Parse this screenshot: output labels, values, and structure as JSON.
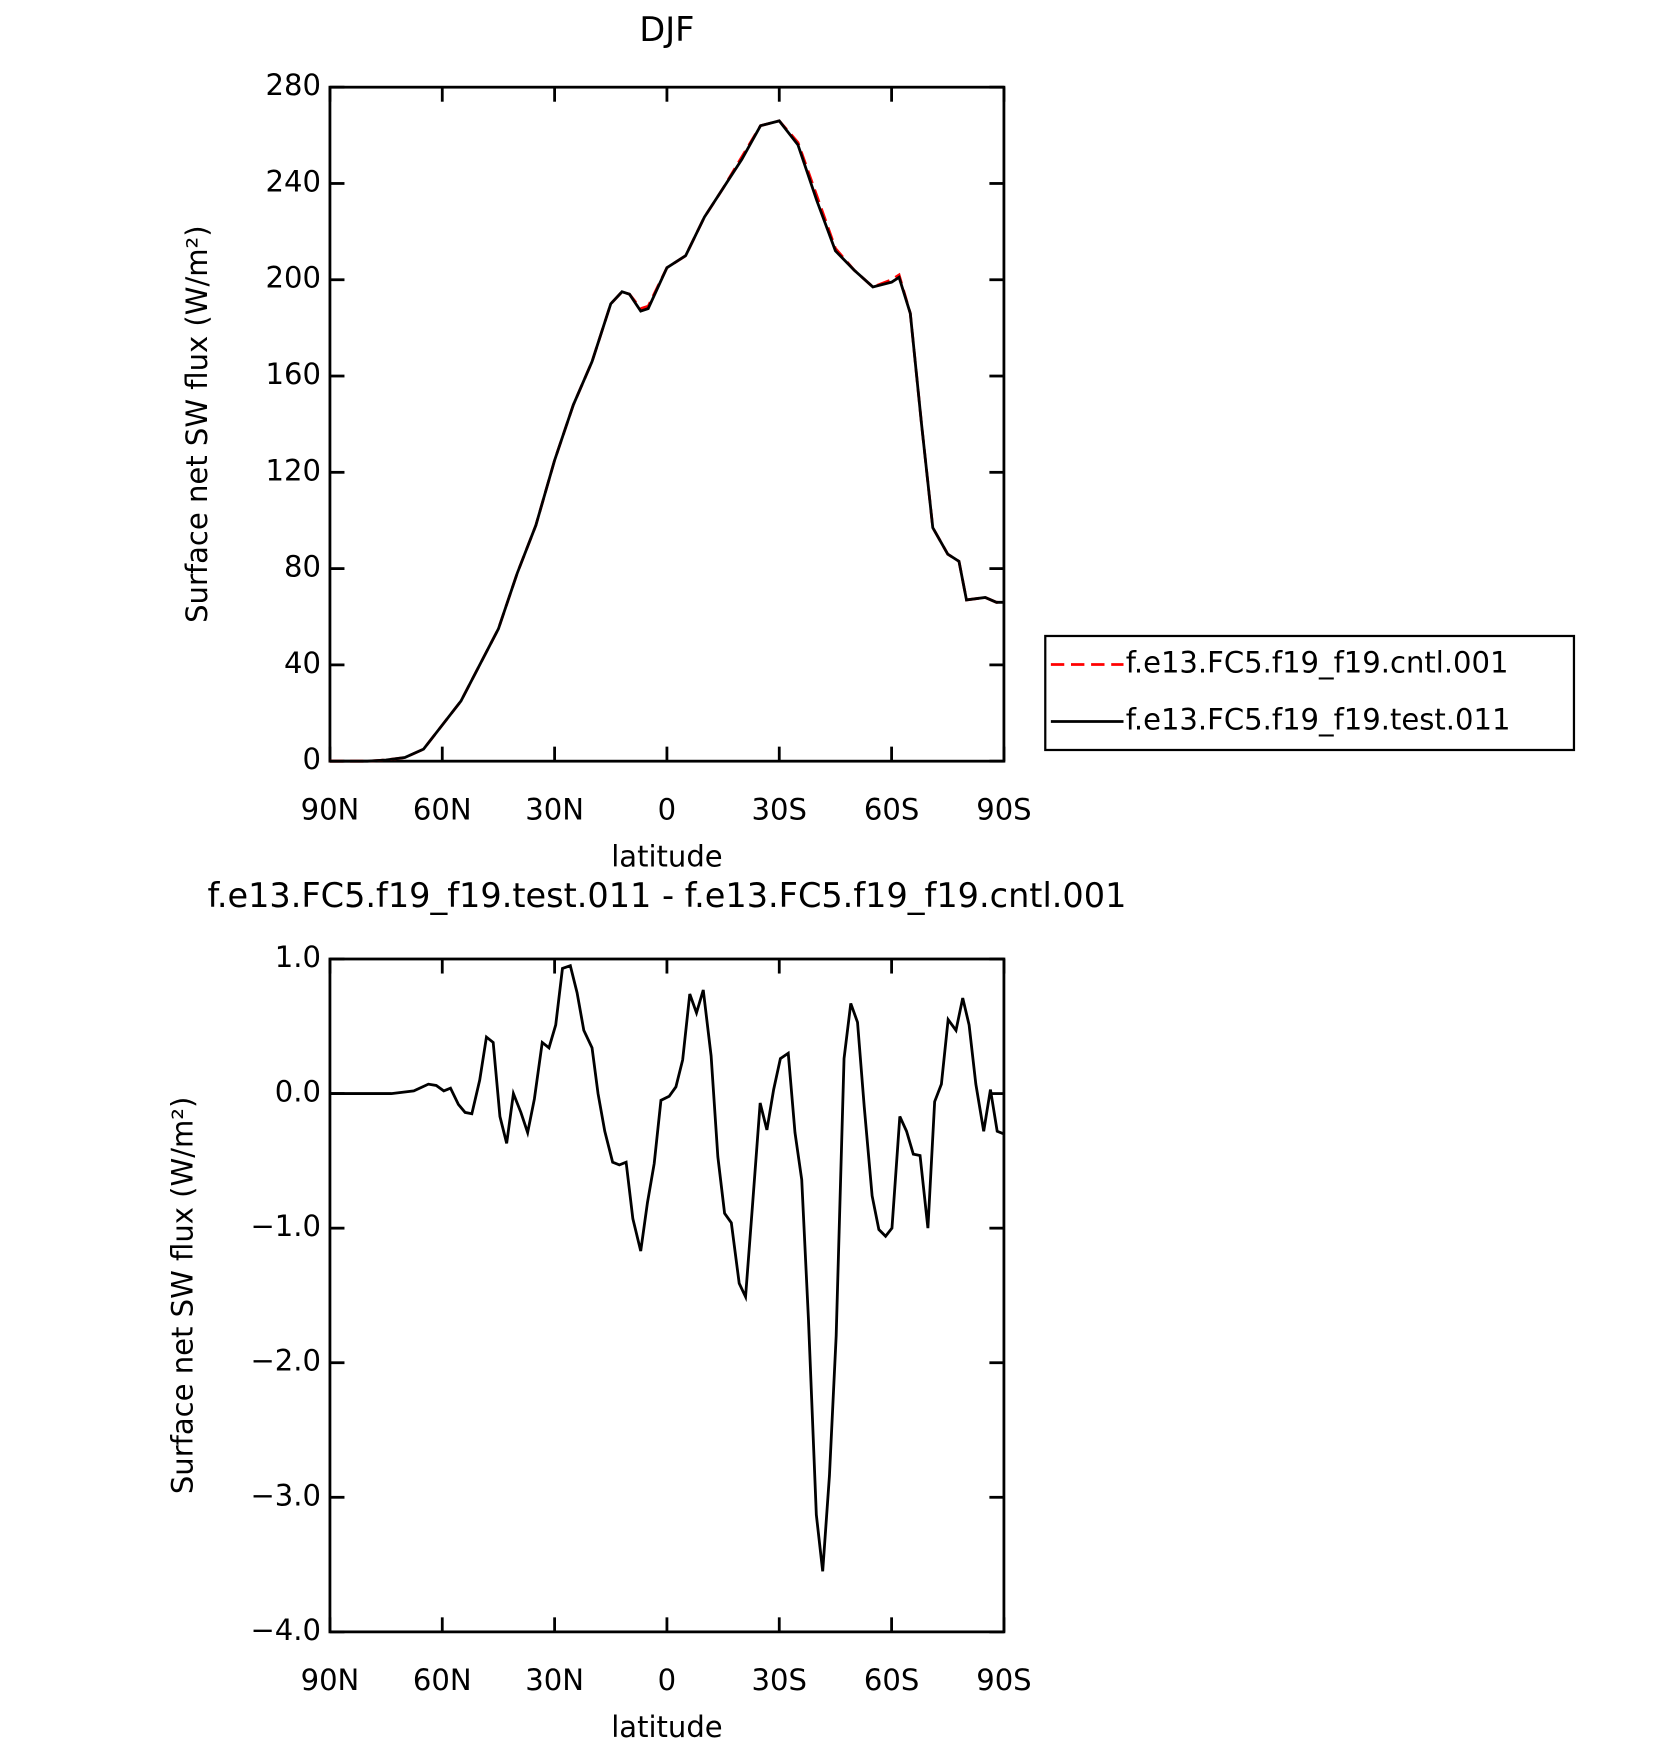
{
  "chart_data": [
    {
      "type": "line",
      "title": "DJF",
      "xlabel": "latitude",
      "ylabel": "Surface net SW flux (W/m²)",
      "x": [
        90,
        80,
        75,
        70,
        65,
        60,
        55,
        50,
        45,
        40,
        35,
        30,
        25,
        20,
        15,
        12,
        10,
        7,
        5,
        0,
        -5,
        -10,
        -15,
        -20,
        -25,
        -30,
        -35,
        -40,
        -45,
        -50,
        -55,
        -60,
        -62,
        -65,
        -68,
        -71,
        -75,
        -78,
        -80,
        -85,
        -88,
        -90
      ],
      "series": [
        {
          "name": "f.e13.FC5.f19_f19.cntl.001",
          "color": "#ff0000",
          "dashed": true,
          "values": [
            0,
            0,
            0.5,
            1.5,
            5,
            15,
            25,
            40,
            55,
            78,
            98,
            125,
            148,
            166,
            190,
            195,
            194,
            188,
            189,
            205,
            210,
            226,
            238,
            251,
            264,
            266,
            257,
            235,
            213,
            204,
            197,
            200,
            202,
            186,
            140,
            97,
            86,
            83,
            67,
            68,
            66,
            66
          ]
        },
        {
          "name": "f.e13.FC5.f19_f19.test.011",
          "color": "#000000",
          "dashed": false,
          "values": [
            0,
            0,
            0.5,
            1.5,
            5,
            15,
            25,
            40,
            55,
            78,
            98,
            125,
            148,
            166,
            190,
            195,
            194,
            187,
            188,
            205,
            210,
            226,
            238,
            250,
            264,
            266,
            256,
            233,
            212,
            204,
            197,
            199,
            201,
            186,
            140,
            97,
            86,
            83,
            67,
            68,
            66,
            66
          ]
        }
      ],
      "xlim": [
        90,
        -90
      ],
      "xticks": [
        {
          "value": 90,
          "label": "90N"
        },
        {
          "value": 60,
          "label": "60N"
        },
        {
          "value": 30,
          "label": "30N"
        },
        0,
        {
          "value": -30,
          "label": "30S"
        },
        {
          "value": -60,
          "label": "60S"
        },
        {
          "value": -90,
          "label": "90S"
        }
      ],
      "ylim": [
        0,
        280
      ],
      "yticks": [
        0,
        40,
        80,
        120,
        160,
        200,
        240,
        280
      ],
      "legend": "right"
    },
    {
      "type": "line",
      "title": "f.e13.FC5.f19_f19.test.011 - f.e13.FC5.f19_f19.cntl.001",
      "xlabel": "latitude",
      "ylabel": "Surface net SW flux (W/m²)",
      "x": [
        90,
        73.6,
        67.6,
        63.7,
        61.6,
        59.6,
        57.8,
        55.7,
        53.9,
        52.1,
        50.0,
        48.2,
        46.4,
        44.6,
        42.8,
        41.0,
        39.0,
        37.2,
        35.4,
        33.3,
        31.5,
        29.7,
        27.9,
        25.8,
        24.0,
        22.2,
        20.0,
        18.4,
        16.6,
        14.5,
        12.7,
        10.9,
        9.1,
        7.0,
        5.2,
        3.4,
        1.6,
        -0.6,
        -2.4,
        -4.2,
        -6.1,
        -7.9,
        -9.7,
        -11.8,
        -13.6,
        -15.4,
        -17.2,
        -19.3,
        -21.0,
        -22.8,
        -24.9,
        -26.7,
        -28.5,
        -30.3,
        -32.4,
        -34.2,
        -36.0,
        -37.8,
        -39.9,
        -41.6,
        -43.4,
        -45.2,
        -47.3,
        -49.1,
        -50.9,
        -52.7,
        -54.8,
        -56.6,
        -58.4,
        -60.1,
        -62.2,
        -64.0,
        -65.8,
        -67.6,
        -69.7,
        -71.5,
        -73.3,
        -75.1,
        -77.2,
        -79.0,
        -80.7,
        -82.5,
        -84.6,
        -86.4,
        -88.2,
        -90
      ],
      "series": [
        {
          "name": "f.e13.FC5.f19_f19.test.011 - f.e13.FC5.f19_f19.cntl.001",
          "color": "#000000",
          "dashed": false,
          "values": [
            0,
            0,
            0.02,
            0.07,
            0.06,
            0.02,
            0.04,
            -0.08,
            -0.14,
            -0.15,
            0.1,
            0.42,
            0.38,
            -0.17,
            -0.37,
            0,
            -0.14,
            -0.29,
            -0.04,
            0.38,
            0.34,
            0.51,
            0.93,
            0.95,
            0.75,
            0.47,
            0.34,
            0,
            -0.28,
            -0.51,
            -0.53,
            -0.51,
            -0.93,
            -1.17,
            -0.81,
            -0.52,
            -0.05,
            -0.02,
            0.05,
            0.25,
            0.74,
            0.6,
            0.77,
            0.28,
            -0.47,
            -0.89,
            -0.96,
            -1.41,
            -1.51,
            -0.85,
            -0.07,
            -0.27,
            0.03,
            0.26,
            0.3,
            -0.29,
            -0.64,
            -1.68,
            -3.13,
            -3.55,
            -2.84,
            -1.8,
            0.26,
            0.67,
            0.53,
            -0.1,
            -0.76,
            -1.01,
            -1.06,
            -1.0,
            -0.17,
            -0.28,
            -0.45,
            -0.46,
            -1.0,
            -0.06,
            0.07,
            0.55,
            0.47,
            0.71,
            0.51,
            0.07,
            -0.28,
            0.03,
            -0.28,
            -0.3
          ]
        }
      ],
      "xlim": [
        90,
        -90
      ],
      "xticks": [
        {
          "value": 90,
          "label": "90N"
        },
        {
          "value": 60,
          "label": "60N"
        },
        {
          "value": 30,
          "label": "30N"
        },
        0,
        {
          "value": -30,
          "label": "30S"
        },
        {
          "value": -60,
          "label": "60S"
        },
        {
          "value": -90,
          "label": "90S"
        }
      ],
      "ylim": [
        -4,
        1
      ],
      "yticks": [
        {
          "value": 1,
          "label": "1.0"
        },
        {
          "value": 0,
          "label": "0.0"
        },
        {
          "value": -1,
          "label": "−1.0"
        },
        {
          "value": -2,
          "label": "−2.0"
        },
        {
          "value": -3,
          "label": "−3.0"
        },
        {
          "value": -4,
          "label": "−4.0"
        }
      ]
    }
  ]
}
